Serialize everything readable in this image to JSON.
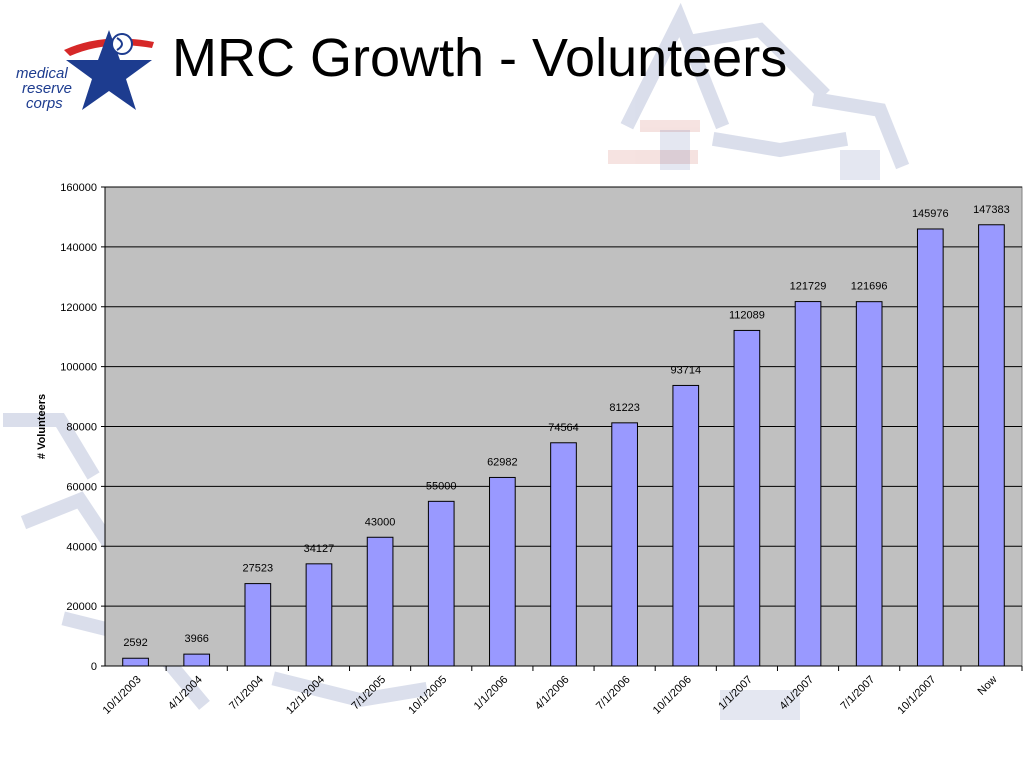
{
  "slide": {
    "title": "MRC Growth - Volunteers"
  },
  "logo": {
    "icon": "medical-reserve-corps-star-logo",
    "text_lines": [
      "medical",
      "reserve",
      "corps"
    ]
  },
  "chart_data": {
    "type": "bar",
    "title": "",
    "xlabel": "",
    "ylabel": "# Volunteers",
    "ylim": [
      0,
      160000
    ],
    "yticks": [
      0,
      20000,
      40000,
      60000,
      80000,
      100000,
      120000,
      140000,
      160000
    ],
    "grid": true,
    "legend": "none",
    "categories": [
      "10/1/2003",
      "4/1/2004",
      "7/1/2004",
      "12/1/2004",
      "7/1/2005",
      "10/1/2005",
      "1/1/2006",
      "4/1/2006",
      "7/1/2006",
      "10/1/2006",
      "1/1/2007",
      "4/1/2007",
      "7/1/2007",
      "10/1/2007",
      "Now"
    ],
    "values": [
      2592,
      3966,
      27523,
      34127,
      43000,
      55000,
      62982,
      74564,
      81223,
      93714,
      112089,
      121729,
      121696,
      145976,
      147383
    ],
    "colors": {
      "bar_fill": "#9999ff",
      "bar_stroke": "#000000",
      "plot_background": "#c0c0c0",
      "gridline": "#000000"
    }
  }
}
